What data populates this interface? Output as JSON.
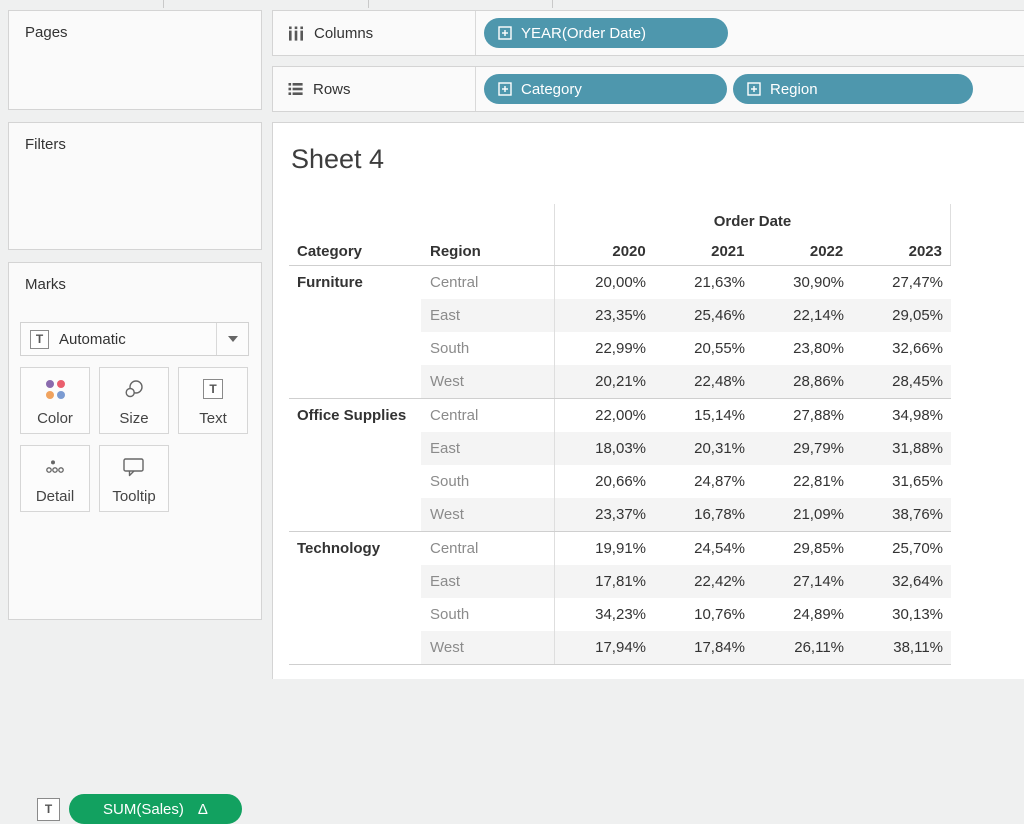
{
  "colors": {
    "pill_blue": "#4E97AD",
    "pill_green": "#12A160",
    "dot_purple": "#8A6BAE",
    "dot_red": "#EA5F6E",
    "dot_orange": "#F0A35F",
    "dot_blue": "#7B9BD2"
  },
  "icons": {
    "t_glyph": "T",
    "delta_glyph": "Δ"
  },
  "panels": {
    "pages": {
      "title": "Pages"
    },
    "filters": {
      "title": "Filters"
    },
    "marks": {
      "title": "Marks",
      "mark_type": "Automatic",
      "buttons": [
        {
          "label": "Color"
        },
        {
          "label": "Size"
        },
        {
          "label": "Text"
        },
        {
          "label": "Detail"
        },
        {
          "label": "Tooltip"
        }
      ],
      "encoding_pill": {
        "label": "SUM(Sales)",
        "indicator": "Δ"
      }
    }
  },
  "shelves": {
    "columns": {
      "label": "Columns",
      "pills": [
        {
          "label": "YEAR(Order Date)"
        }
      ]
    },
    "rows": {
      "label": "Rows",
      "pills": [
        {
          "label": "Category"
        },
        {
          "label": "Region"
        }
      ]
    }
  },
  "sheet": {
    "title": "Sheet 4"
  },
  "table": {
    "col_super_header": "Order Date",
    "row_headers": {
      "category": "Category",
      "region": "Region"
    },
    "years": [
      "2020",
      "2021",
      "2022",
      "2023"
    ],
    "groups": [
      {
        "category": "Furniture",
        "rows": [
          {
            "region": "Central",
            "values": [
              "20,00%",
              "21,63%",
              "30,90%",
              "27,47%"
            ]
          },
          {
            "region": "East",
            "values": [
              "23,35%",
              "25,46%",
              "22,14%",
              "29,05%"
            ]
          },
          {
            "region": "South",
            "values": [
              "22,99%",
              "20,55%",
              "23,80%",
              "32,66%"
            ]
          },
          {
            "region": "West",
            "values": [
              "20,21%",
              "22,48%",
              "28,86%",
              "28,45%"
            ]
          }
        ]
      },
      {
        "category": "Office Supplies",
        "rows": [
          {
            "region": "Central",
            "values": [
              "22,00%",
              "15,14%",
              "27,88%",
              "34,98%"
            ]
          },
          {
            "region": "East",
            "values": [
              "18,03%",
              "20,31%",
              "29,79%",
              "31,88%"
            ]
          },
          {
            "region": "South",
            "values": [
              "20,66%",
              "24,87%",
              "22,81%",
              "31,65%"
            ]
          },
          {
            "region": "West",
            "values": [
              "23,37%",
              "16,78%",
              "21,09%",
              "38,76%"
            ]
          }
        ]
      },
      {
        "category": "Technology",
        "rows": [
          {
            "region": "Central",
            "values": [
              "19,91%",
              "24,54%",
              "29,85%",
              "25,70%"
            ]
          },
          {
            "region": "East",
            "values": [
              "17,81%",
              "22,42%",
              "27,14%",
              "32,64%"
            ]
          },
          {
            "region": "South",
            "values": [
              "34,23%",
              "10,76%",
              "24,89%",
              "30,13%"
            ]
          },
          {
            "region": "West",
            "values": [
              "17,94%",
              "17,84%",
              "26,11%",
              "38,11%"
            ]
          }
        ]
      }
    ]
  }
}
